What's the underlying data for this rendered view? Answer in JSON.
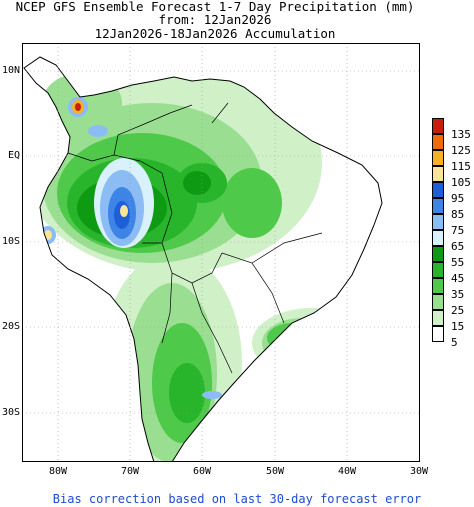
{
  "title": {
    "line1": "NCEP GFS Ensemble Forecast 1-7 Day Precipitation (mm)",
    "line2": "from: 12Jan2026",
    "line3": "12Jan2026-18Jan2026 Accumulation"
  },
  "map": {
    "region": "South America",
    "lat_labels": [
      "10N",
      "EQ",
      "10S",
      "20S",
      "30S"
    ],
    "lon_labels": [
      "80W",
      "70W",
      "60W",
      "50W",
      "40W",
      "30W"
    ],
    "lat_range": [
      -36,
      13
    ],
    "lon_range": [
      -85,
      -30
    ],
    "grid": "dotted",
    "land_fill": "#ffffff"
  },
  "legend": {
    "placement": "right",
    "levels": [
      {
        "label": "135",
        "color": "#c51f0c"
      },
      {
        "label": "125",
        "color": "#f06b09"
      },
      {
        "label": "115",
        "color": "#f5b028"
      },
      {
        "label": "105",
        "color": "#f9e59a"
      },
      {
        "label": "95",
        "color": "#1e5fd7"
      },
      {
        "label": "85",
        "color": "#3d84e6"
      },
      {
        "label": "75",
        "color": "#8bbcf3"
      },
      {
        "label": "65",
        "color": "#d8f1fb"
      },
      {
        "label": "55",
        "color": "#0f9a14"
      },
      {
        "label": "45",
        "color": "#28b42b"
      },
      {
        "label": "35",
        "color": "#4ec94a"
      },
      {
        "label": "25",
        "color": "#9ade91"
      },
      {
        "label": "15",
        "color": "#d0f0c8"
      },
      {
        "label": "5",
        "color": "#ffffff"
      }
    ]
  },
  "footer": "Bias correction based on last 30-day forecast error"
}
